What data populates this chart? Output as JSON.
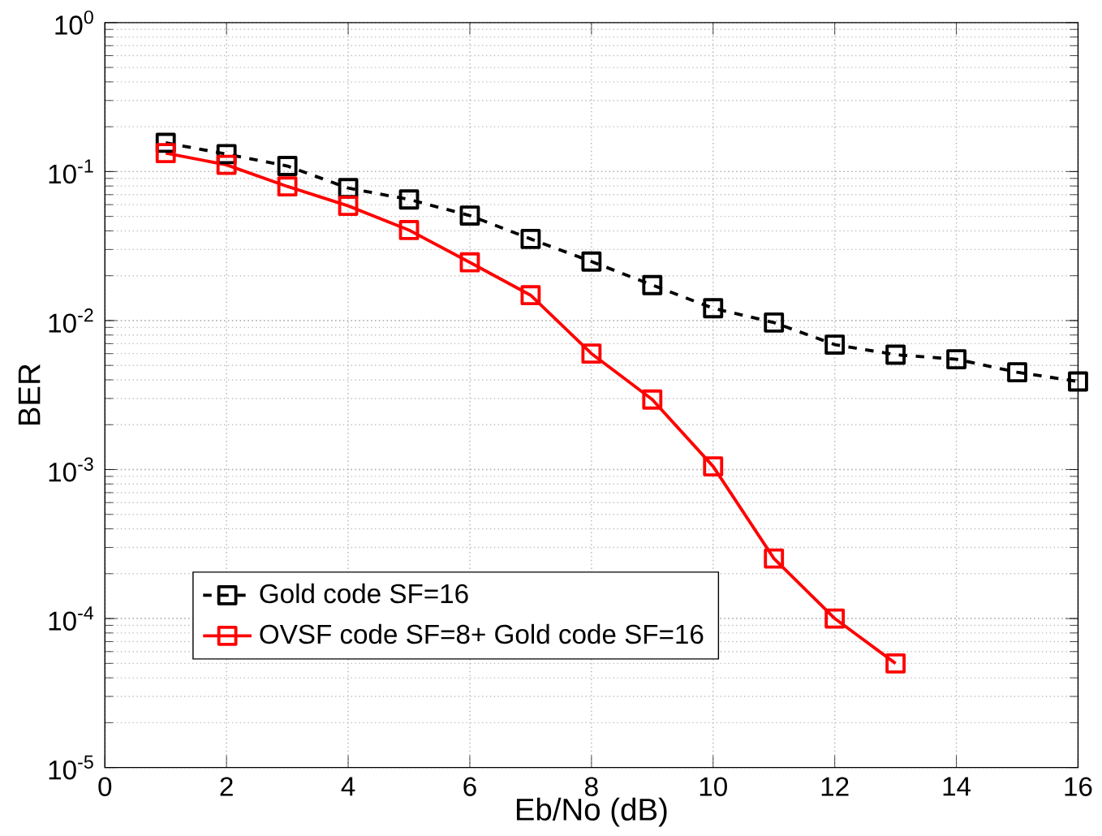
{
  "chart_data": {
    "type": "line",
    "xlabel": "Eb/No (dB)",
    "ylabel": "BER",
    "x": [
      1,
      2,
      3,
      4,
      5,
      6,
      7,
      8,
      9,
      10,
      11,
      12,
      13,
      14,
      15,
      16
    ],
    "series": [
      {
        "name": "Gold code SF=16",
        "color": "#000000",
        "line_style": "dashed",
        "values": [
          0.156,
          0.131,
          0.109,
          0.0775,
          0.065,
          0.0507,
          0.0353,
          0.0249,
          0.0173,
          0.0121,
          0.0097,
          0.0069,
          0.0059,
          0.0055,
          0.0045,
          0.0039
        ]
      },
      {
        "name": "OVSF code SF=8+ Gold code SF=16",
        "color": "#ff0000",
        "line_style": "solid",
        "values": [
          0.133,
          0.111,
          0.0795,
          0.0589,
          0.0405,
          0.0246,
          0.0148,
          0.006,
          0.00295,
          0.00105,
          0.000253,
          0.0001,
          5e-05,
          null,
          null,
          null
        ]
      }
    ],
    "xlim": [
      0,
      16
    ],
    "xticks": [
      0,
      2,
      4,
      6,
      8,
      10,
      12,
      14,
      16
    ],
    "ylim": [
      1e-05,
      1
    ],
    "yticks": [
      {
        "value": 1e-05,
        "label": "10$^{-5}$"
      },
      {
        "value": 0.0001,
        "label": "10$^{-4}$"
      },
      {
        "value": 0.001,
        "label": "10$^{-3}$"
      },
      {
        "value": 0.01,
        "label": "10$^{-2}$"
      },
      {
        "value": 0.1,
        "label": "10$^{-1}$"
      },
      {
        "value": 1,
        "label": "10$^{0}$"
      }
    ],
    "log": "y",
    "grid": true,
    "legend": "bottom left",
    "marker": "square"
  }
}
